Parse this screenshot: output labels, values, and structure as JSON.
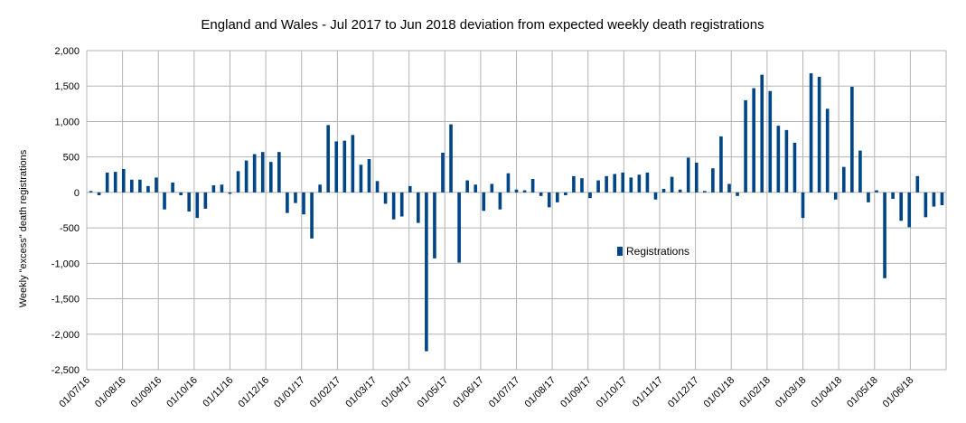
{
  "chart_data": {
    "type": "bar",
    "title": "England and Wales - Jul 2017 to Jun 2018 deviation from expected weekly death registrations",
    "xlabel": "",
    "ylabel": "Weekly \"excess\" death registrations",
    "ylim": [
      -2500,
      2000
    ],
    "yticks": [
      -2500,
      -2000,
      -1500,
      -1000,
      -500,
      0,
      500,
      1000,
      1500,
      2000
    ],
    "ytick_labels": [
      "-2,500",
      "-2,000",
      "-1,500",
      "-1,000",
      "-500",
      "0",
      "500",
      "1,000",
      "1,500",
      "2,000"
    ],
    "grid": true,
    "legend_position": "right-center",
    "x_tick_labels": [
      "01/07/16",
      "01/08/16",
      "01/09/16",
      "01/10/16",
      "01/11/16",
      "01/12/16",
      "01/01/17",
      "01/02/17",
      "01/03/17",
      "01/04/17",
      "01/05/17",
      "01/06/17",
      "01/07/17",
      "01/08/17",
      "01/09/17",
      "01/10/17",
      "01/11/17",
      "01/12/17",
      "01/01/18",
      "01/02/18",
      "01/03/18",
      "01/04/18",
      "01/05/18",
      "01/06/18"
    ],
    "series": [
      {
        "name": "Registrations",
        "color": "#004586",
        "values": [
          20,
          -40,
          280,
          290,
          330,
          180,
          180,
          90,
          210,
          -240,
          140,
          -40,
          -270,
          -360,
          -230,
          100,
          110,
          -20,
          300,
          450,
          540,
          570,
          430,
          570,
          -290,
          -150,
          -310,
          -650,
          110,
          950,
          720,
          730,
          810,
          390,
          470,
          160,
          -160,
          -380,
          -340,
          90,
          -430,
          -2240,
          -930,
          560,
          960,
          -990,
          170,
          110,
          -260,
          120,
          -240,
          270,
          40,
          30,
          190,
          -50,
          -210,
          -140,
          -40,
          230,
          200,
          -80,
          170,
          230,
          260,
          280,
          210,
          250,
          280,
          -100,
          50,
          220,
          40,
          490,
          420,
          20,
          340,
          790,
          120,
          -50,
          1300,
          1470,
          1660,
          1430,
          940,
          880,
          700,
          -360,
          1680,
          1630,
          1180,
          -100,
          360,
          1490,
          590,
          -140,
          30,
          -1210,
          -90,
          -400,
          -490,
          230,
          -350,
          -200,
          -180
        ]
      }
    ]
  }
}
